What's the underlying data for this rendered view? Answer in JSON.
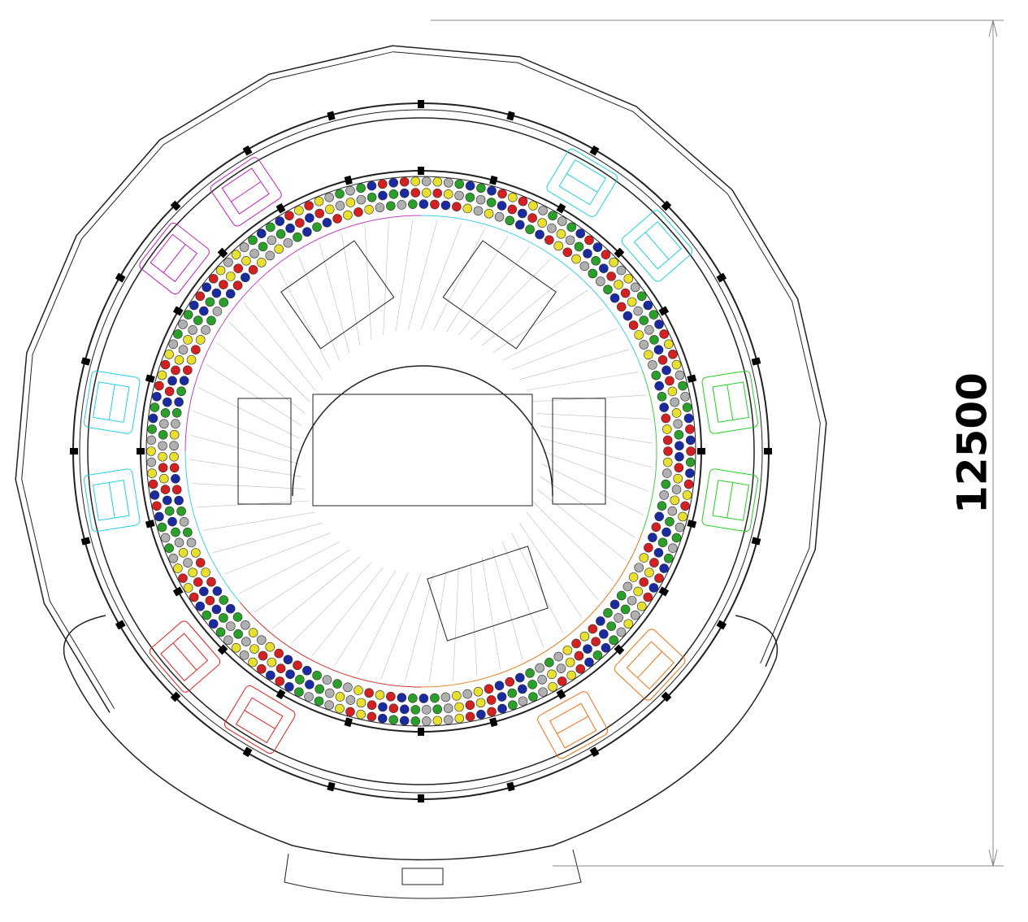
{
  "dimension": {
    "label": "12500"
  }
}
